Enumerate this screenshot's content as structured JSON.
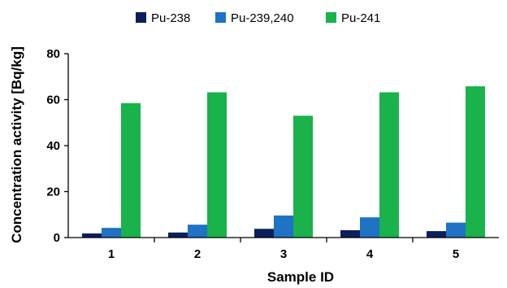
{
  "chart_data": {
    "type": "bar",
    "title": "",
    "xlabel": "Sample ID",
    "ylabel": "Concentration activity [Bq/kg]",
    "categories": [
      "1",
      "2",
      "3",
      "4",
      "5"
    ],
    "ylim": [
      0,
      80
    ],
    "yticks": [
      "0",
      "20",
      "40",
      "60",
      "80"
    ],
    "grid": false,
    "legend_position": "top-center",
    "series": [
      {
        "name": "Pu-238",
        "color": "#0b1f5c",
        "values": [
          1.8,
          2.2,
          3.8,
          3.2,
          2.8
        ]
      },
      {
        "name": "Pu-239,240",
        "color": "#1f72c4",
        "values": [
          4.2,
          5.6,
          9.6,
          8.8,
          6.5
        ]
      },
      {
        "name": "Pu-241",
        "color": "#19b24b",
        "values": [
          58.5,
          63.2,
          53.0,
          63.2,
          65.8
        ]
      }
    ]
  }
}
